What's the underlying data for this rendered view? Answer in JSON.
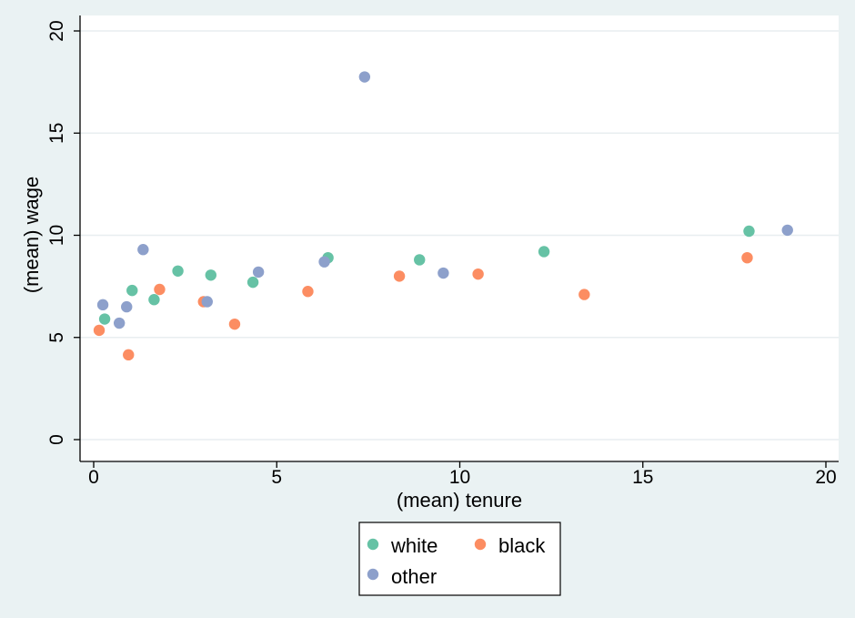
{
  "chart_data": {
    "type": "scatter",
    "title": "",
    "xlabel": "(mean) tenure",
    "ylabel": "(mean) wage",
    "xlim": [
      0,
      20
    ],
    "ylim": [
      0,
      20
    ],
    "x_ticks": [
      0,
      5,
      10,
      15,
      20
    ],
    "y_ticks": [
      0,
      5,
      10,
      15,
      20
    ],
    "grid": "horizontal",
    "legend_position": "bottom",
    "series": [
      {
        "name": "white",
        "color": "#66c2a5",
        "points": [
          {
            "x": 0.3,
            "y": 5.9
          },
          {
            "x": 1.05,
            "y": 7.3
          },
          {
            "x": 1.65,
            "y": 6.85
          },
          {
            "x": 2.3,
            "y": 8.25
          },
          {
            "x": 3.2,
            "y": 8.05
          },
          {
            "x": 4.35,
            "y": 7.7
          },
          {
            "x": 6.4,
            "y": 8.9
          },
          {
            "x": 8.9,
            "y": 8.8
          },
          {
            "x": 12.3,
            "y": 9.2
          },
          {
            "x": 17.9,
            "y": 10.2
          }
        ]
      },
      {
        "name": "black",
        "color": "#fc8d62",
        "points": [
          {
            "x": 0.15,
            "y": 5.35
          },
          {
            "x": 0.95,
            "y": 4.15
          },
          {
            "x": 1.8,
            "y": 7.35
          },
          {
            "x": 3.0,
            "y": 6.75
          },
          {
            "x": 3.85,
            "y": 5.65
          },
          {
            "x": 5.85,
            "y": 7.25
          },
          {
            "x": 8.35,
            "y": 8.0
          },
          {
            "x": 10.5,
            "y": 8.1
          },
          {
            "x": 13.4,
            "y": 7.1
          },
          {
            "x": 17.85,
            "y": 8.9
          }
        ]
      },
      {
        "name": "other",
        "color": "#8da0cb",
        "points": [
          {
            "x": 0.25,
            "y": 6.6
          },
          {
            "x": 0.7,
            "y": 5.7
          },
          {
            "x": 0.9,
            "y": 6.5
          },
          {
            "x": 1.35,
            "y": 9.3
          },
          {
            "x": 3.1,
            "y": 6.75
          },
          {
            "x": 4.5,
            "y": 8.2
          },
          {
            "x": 6.3,
            "y": 8.7
          },
          {
            "x": 7.4,
            "y": 17.75
          },
          {
            "x": 9.55,
            "y": 8.15
          },
          {
            "x": 18.95,
            "y": 10.25
          }
        ]
      }
    ]
  }
}
